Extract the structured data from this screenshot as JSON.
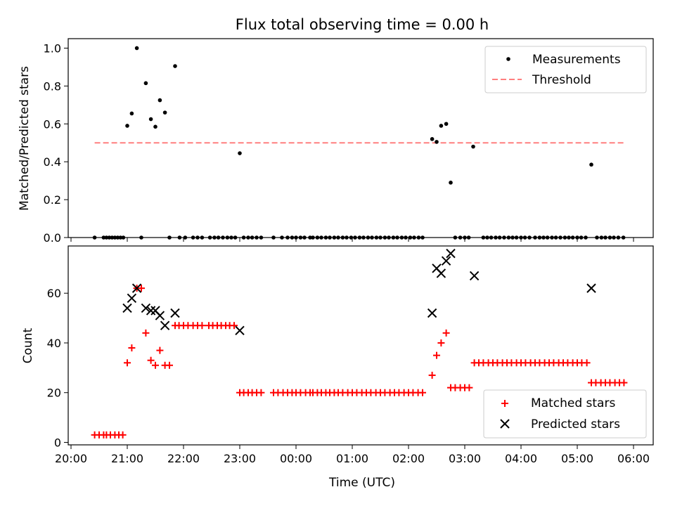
{
  "title": "Flux total observing time = 0.00 h",
  "colors": {
    "measurement": "#000000",
    "threshold": "#ff7f7f",
    "matched": "#ff0000",
    "predicted": "#000000"
  },
  "chart_data": [
    {
      "type": "scatter",
      "title": "Flux total observing time = 0.00 h",
      "ylabel": "Matched/Predicted stars",
      "xlabel": "",
      "x_unit": "hours since 20:00 UTC",
      "xlim": [
        -0.05,
        10.35
      ],
      "ylim": [
        0.0,
        1.05
      ],
      "y_ticks": [
        "0.0",
        "0.2",
        "0.4",
        "0.6",
        "0.8",
        "1.0"
      ],
      "legend": {
        "position": "upper right",
        "entries": [
          "Measurements",
          "Threshold"
        ]
      },
      "series": [
        {
          "name": "Measurements",
          "marker": "dot",
          "points": [
            [
              0.42,
              0
            ],
            [
              0.58,
              0
            ],
            [
              0.63,
              0
            ],
            [
              0.68,
              0
            ],
            [
              0.73,
              0
            ],
            [
              0.78,
              0
            ],
            [
              0.83,
              0
            ],
            [
              0.88,
              0
            ],
            [
              0.93,
              0
            ],
            [
              1.0,
              0.59
            ],
            [
              1.08,
              0.655
            ],
            [
              1.17,
              1.0
            ],
            [
              1.25,
              0
            ],
            [
              1.33,
              0.815
            ],
            [
              1.42,
              0.625
            ],
            [
              1.5,
              0.585
            ],
            [
              1.58,
              0.725
            ],
            [
              1.67,
              0.66
            ],
            [
              1.75,
              0
            ],
            [
              1.85,
              0.905
            ],
            [
              1.93,
              0
            ],
            [
              2.03,
              0
            ],
            [
              2.17,
              0
            ],
            [
              2.25,
              0
            ],
            [
              2.33,
              0
            ],
            [
              2.47,
              0
            ],
            [
              2.55,
              0
            ],
            [
              2.62,
              0
            ],
            [
              2.7,
              0
            ],
            [
              2.78,
              0
            ],
            [
              2.85,
              0
            ],
            [
              2.92,
              0
            ],
            [
              3.0,
              0.445
            ],
            [
              3.07,
              0
            ],
            [
              3.15,
              0
            ],
            [
              3.22,
              0
            ],
            [
              3.3,
              0
            ],
            [
              3.38,
              0
            ],
            [
              3.6,
              0
            ],
            [
              3.75,
              0
            ],
            [
              3.85,
              0
            ],
            [
              3.93,
              0
            ],
            [
              4.0,
              0
            ],
            [
              4.08,
              0
            ],
            [
              4.15,
              0
            ],
            [
              4.25,
              0
            ],
            [
              4.3,
              0
            ],
            [
              4.38,
              0
            ],
            [
              4.45,
              0
            ],
            [
              4.53,
              0
            ],
            [
              4.6,
              0
            ],
            [
              4.68,
              0
            ],
            [
              4.75,
              0
            ],
            [
              4.83,
              0
            ],
            [
              4.9,
              0
            ],
            [
              4.98,
              0
            ],
            [
              5.05,
              0
            ],
            [
              5.13,
              0
            ],
            [
              5.2,
              0
            ],
            [
              5.28,
              0
            ],
            [
              5.35,
              0
            ],
            [
              5.43,
              0
            ],
            [
              5.5,
              0
            ],
            [
              5.58,
              0
            ],
            [
              5.65,
              0
            ],
            [
              5.73,
              0
            ],
            [
              5.8,
              0
            ],
            [
              5.88,
              0
            ],
            [
              5.95,
              0
            ],
            [
              6.03,
              0
            ],
            [
              6.1,
              0
            ],
            [
              6.18,
              0
            ],
            [
              6.25,
              0
            ],
            [
              6.42,
              0.52
            ],
            [
              6.5,
              0.505
            ],
            [
              6.58,
              0.59
            ],
            [
              6.67,
              0.6
            ],
            [
              6.75,
              0.29
            ],
            [
              6.83,
              0
            ],
            [
              6.92,
              0
            ],
            [
              7.0,
              0
            ],
            [
              7.07,
              0
            ],
            [
              7.15,
              0.48
            ],
            [
              7.33,
              0
            ],
            [
              7.4,
              0
            ],
            [
              7.47,
              0
            ],
            [
              7.55,
              0
            ],
            [
              7.62,
              0
            ],
            [
              7.7,
              0
            ],
            [
              7.78,
              0
            ],
            [
              7.85,
              0
            ],
            [
              7.92,
              0
            ],
            [
              8.0,
              0
            ],
            [
              8.07,
              0
            ],
            [
              8.15,
              0
            ],
            [
              8.25,
              0
            ],
            [
              8.33,
              0
            ],
            [
              8.4,
              0
            ],
            [
              8.47,
              0
            ],
            [
              8.55,
              0
            ],
            [
              8.62,
              0
            ],
            [
              8.7,
              0
            ],
            [
              8.78,
              0
            ],
            [
              8.85,
              0
            ],
            [
              8.92,
              0
            ],
            [
              9.0,
              0
            ],
            [
              9.07,
              0
            ],
            [
              9.15,
              0
            ],
            [
              9.25,
              0.385
            ],
            [
              9.35,
              0
            ],
            [
              9.43,
              0
            ],
            [
              9.5,
              0
            ],
            [
              9.58,
              0
            ],
            [
              9.65,
              0
            ],
            [
              9.73,
              0
            ],
            [
              9.82,
              0
            ]
          ]
        },
        {
          "name": "Threshold",
          "marker": "dashed-line",
          "points": [
            [
              0.42,
              0.5
            ],
            [
              9.85,
              0.5
            ]
          ]
        }
      ]
    },
    {
      "type": "scatter",
      "title": "",
      "xlabel": "Time (UTC)",
      "ylabel": "Count",
      "x_unit": "hours since 20:00 UTC",
      "xlim": [
        -0.05,
        10.35
      ],
      "ylim": [
        -1,
        79
      ],
      "y_ticks": [
        "0",
        "20",
        "40",
        "60"
      ],
      "x_ticks": [
        "20:00",
        "21:00",
        "22:00",
        "23:00",
        "00:00",
        "01:00",
        "02:00",
        "03:00",
        "04:00",
        "05:00",
        "06:00"
      ],
      "legend": {
        "position": "lower right",
        "entries": [
          "Matched stars",
          "Predicted stars"
        ]
      },
      "series": [
        {
          "name": "Matched stars",
          "marker": "plus",
          "points": [
            [
              0.42,
              3
            ],
            [
              0.5,
              3
            ],
            [
              0.58,
              3
            ],
            [
              0.63,
              3
            ],
            [
              0.7,
              3
            ],
            [
              0.78,
              3
            ],
            [
              0.85,
              3
            ],
            [
              0.92,
              3
            ],
            [
              1.0,
              32
            ],
            [
              1.08,
              38
            ],
            [
              1.17,
              62
            ],
            [
              1.25,
              62
            ],
            [
              1.33,
              44
            ],
            [
              1.42,
              33
            ],
            [
              1.5,
              31
            ],
            [
              1.58,
              37
            ],
            [
              1.67,
              31
            ],
            [
              1.75,
              31
            ],
            [
              1.85,
              47
            ],
            [
              1.92,
              47
            ],
            [
              2.0,
              47
            ],
            [
              2.08,
              47
            ],
            [
              2.17,
              47
            ],
            [
              2.25,
              47
            ],
            [
              2.33,
              47
            ],
            [
              2.45,
              47
            ],
            [
              2.52,
              47
            ],
            [
              2.6,
              47
            ],
            [
              2.67,
              47
            ],
            [
              2.75,
              47
            ],
            [
              2.82,
              47
            ],
            [
              2.9,
              47
            ],
            [
              3.0,
              20
            ],
            [
              3.07,
              20
            ],
            [
              3.15,
              20
            ],
            [
              3.22,
              20
            ],
            [
              3.3,
              20
            ],
            [
              3.38,
              20
            ],
            [
              3.6,
              20
            ],
            [
              3.68,
              20
            ],
            [
              3.77,
              20
            ],
            [
              3.85,
              20
            ],
            [
              3.93,
              20
            ],
            [
              4.0,
              20
            ],
            [
              4.08,
              20
            ],
            [
              4.17,
              20
            ],
            [
              4.25,
              20
            ],
            [
              4.3,
              20
            ],
            [
              4.38,
              20
            ],
            [
              4.45,
              20
            ],
            [
              4.53,
              20
            ],
            [
              4.6,
              20
            ],
            [
              4.68,
              20
            ],
            [
              4.75,
              20
            ],
            [
              4.83,
              20
            ],
            [
              4.92,
              20
            ],
            [
              5.0,
              20
            ],
            [
              5.08,
              20
            ],
            [
              5.17,
              20
            ],
            [
              5.25,
              20
            ],
            [
              5.33,
              20
            ],
            [
              5.42,
              20
            ],
            [
              5.5,
              20
            ],
            [
              5.58,
              20
            ],
            [
              5.67,
              20
            ],
            [
              5.75,
              20
            ],
            [
              5.83,
              20
            ],
            [
              5.92,
              20
            ],
            [
              6.0,
              20
            ],
            [
              6.08,
              20
            ],
            [
              6.17,
              20
            ],
            [
              6.25,
              20
            ],
            [
              6.42,
              27
            ],
            [
              6.5,
              35
            ],
            [
              6.58,
              40
            ],
            [
              6.67,
              44
            ],
            [
              6.75,
              22
            ],
            [
              6.83,
              22
            ],
            [
              6.92,
              22
            ],
            [
              7.0,
              22
            ],
            [
              7.08,
              22
            ],
            [
              7.17,
              32
            ],
            [
              7.25,
              32
            ],
            [
              7.33,
              32
            ],
            [
              7.42,
              32
            ],
            [
              7.5,
              32
            ],
            [
              7.58,
              32
            ],
            [
              7.67,
              32
            ],
            [
              7.75,
              32
            ],
            [
              7.83,
              32
            ],
            [
              7.92,
              32
            ],
            [
              8.0,
              32
            ],
            [
              8.08,
              32
            ],
            [
              8.17,
              32
            ],
            [
              8.25,
              32
            ],
            [
              8.33,
              32
            ],
            [
              8.42,
              32
            ],
            [
              8.5,
              32
            ],
            [
              8.58,
              32
            ],
            [
              8.67,
              32
            ],
            [
              8.75,
              32
            ],
            [
              8.83,
              32
            ],
            [
              8.92,
              32
            ],
            [
              9.0,
              32
            ],
            [
              9.08,
              32
            ],
            [
              9.17,
              32
            ],
            [
              9.25,
              24
            ],
            [
              9.33,
              24
            ],
            [
              9.42,
              24
            ],
            [
              9.5,
              24
            ],
            [
              9.58,
              24
            ],
            [
              9.67,
              24
            ],
            [
              9.75,
              24
            ],
            [
              9.83,
              24
            ]
          ]
        },
        {
          "name": "Predicted stars",
          "marker": "x",
          "points": [
            [
              1.0,
              54
            ],
            [
              1.08,
              58
            ],
            [
              1.17,
              62
            ],
            [
              1.33,
              54
            ],
            [
              1.42,
              53
            ],
            [
              1.5,
              53
            ],
            [
              1.58,
              51
            ],
            [
              1.67,
              47
            ],
            [
              1.85,
              52
            ],
            [
              3.0,
              45
            ],
            [
              6.42,
              52
            ],
            [
              6.5,
              70
            ],
            [
              6.58,
              68
            ],
            [
              6.67,
              73
            ],
            [
              6.75,
              76
            ],
            [
              7.17,
              67
            ],
            [
              9.25,
              62
            ]
          ]
        }
      ]
    }
  ]
}
